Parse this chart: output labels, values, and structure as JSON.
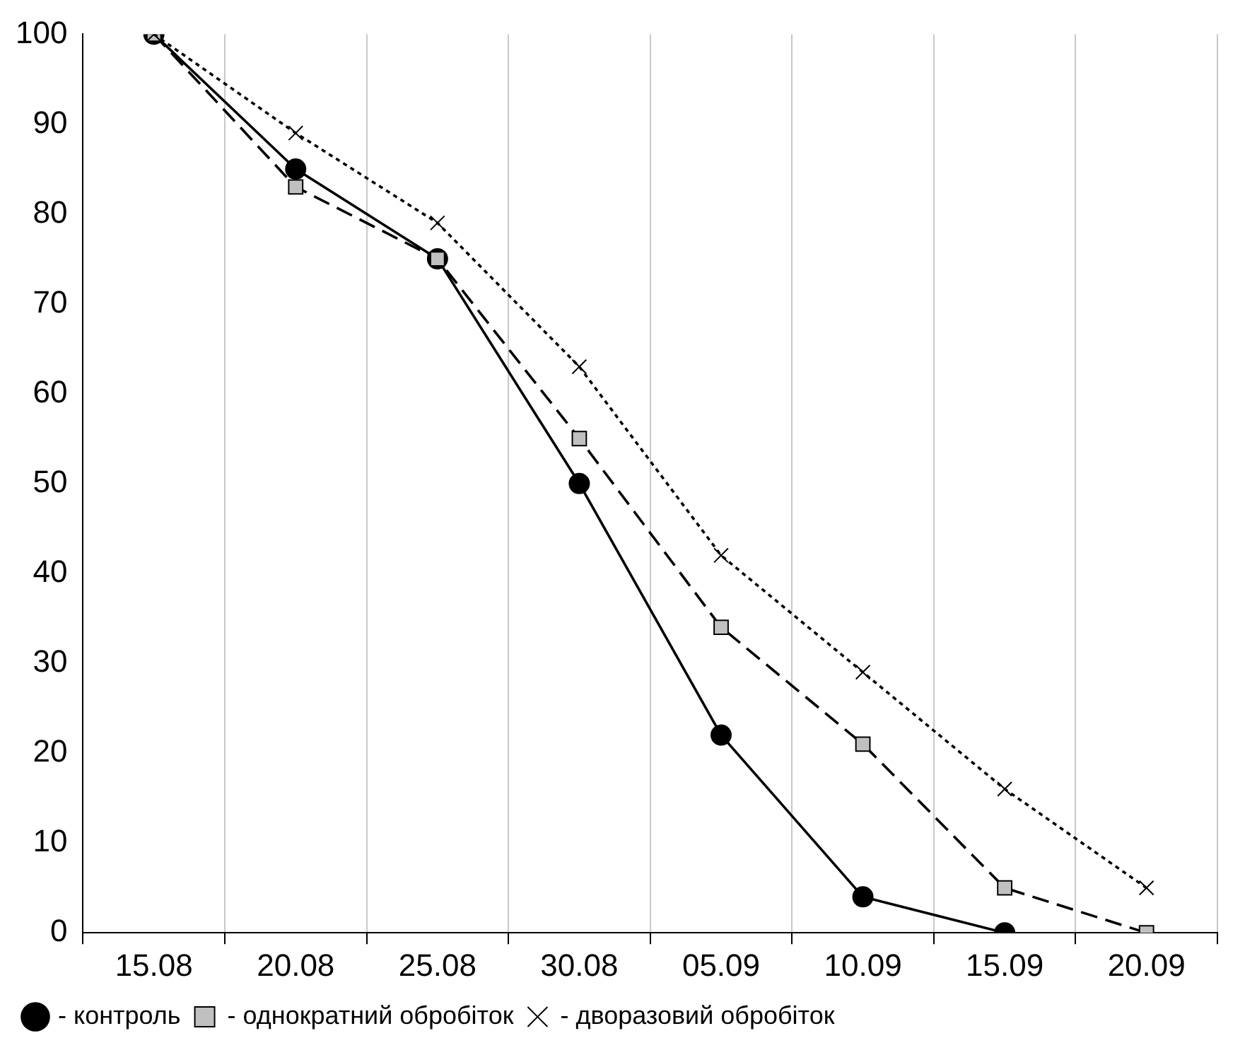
{
  "chart_data": {
    "type": "line",
    "categories": [
      "15.08",
      "20.08",
      "25.08",
      "30.08",
      "05.09",
      "10.09",
      "15.09",
      "20.09"
    ],
    "series": [
      {
        "name": "- контроль",
        "color": "#000000",
        "marker": "circle",
        "line_style": "solid",
        "values": [
          100,
          85,
          75,
          50,
          22,
          4,
          0,
          null
        ]
      },
      {
        "name": "- однократний обробіток",
        "color": "#000000",
        "marker": "square",
        "line_style": "dashed",
        "values": [
          100,
          83,
          75,
          55,
          34,
          21,
          5,
          0
        ]
      },
      {
        "name": "- дворазовий обробіток",
        "color": "#000000",
        "marker": "cross",
        "line_style": "dotted",
        "values": [
          100,
          89,
          79,
          63,
          42,
          29,
          16,
          5
        ]
      }
    ],
    "ylim": [
      0,
      100
    ],
    "yticks": [
      0,
      10,
      20,
      30,
      40,
      50,
      60,
      70,
      80,
      90,
      100
    ],
    "grid": "x",
    "legend": "bottom"
  }
}
